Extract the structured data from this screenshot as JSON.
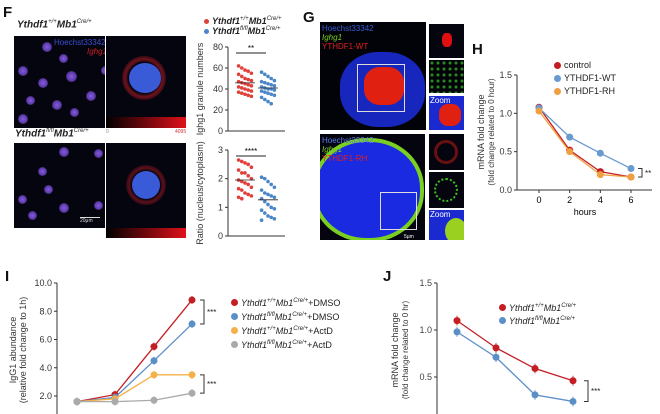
{
  "panels": {
    "F": {
      "label": "F",
      "row1_title": {
        "gene": "Ythdf1",
        "g_sup": "+/+",
        "cre": "Mb1",
        "c_sup": "Cre/+"
      },
      "row2_title": {
        "gene": "Ythdf1",
        "g_sup": "fl/fl",
        "cre": "Mb1",
        "c_sup": "Cre/+"
      },
      "channel_hoechst": "Hoechst33342",
      "channel_ighg1": "Ighg1",
      "colorbar_min": "0",
      "colorbar_max": "4095",
      "scale_bar": "20μm",
      "legend": [
        {
          "gene": "Ythdf1",
          "g_sup": "+/+",
          "cre": "Mb1",
          "c_sup": "Cre/+",
          "color": "#e0403a"
        },
        {
          "gene": "Ythdf1",
          "g_sup": "fl/fl",
          "cre": "Mb1",
          "c_sup": "Cre/+",
          "color": "#4a86c8"
        }
      ]
    },
    "G": {
      "label": "G",
      "top_channels": [
        "Hoechst33342",
        "Ighg1",
        "YTHDF1-WT"
      ],
      "bottom_channels": [
        "Hoechst33342",
        "Ighg1",
        "YTHDF1-RH"
      ],
      "zoom_label": "Zoom",
      "scale_bar": "5μm"
    },
    "H": {
      "label": "H"
    },
    "I": {
      "label": "I"
    },
    "J": {
      "label": "J"
    }
  },
  "chart_data": [
    {
      "id": "F-top",
      "type": "scatter",
      "ylabel": "Ighg1 granule numbers",
      "ylim": [
        0,
        80
      ],
      "yticks": [
        "0",
        "20",
        "40",
        "60",
        "80"
      ],
      "significance": "**",
      "series": [
        {
          "name": "Ythdf1+/+Mb1Cre/+",
          "color": "#e0403a",
          "values": [
            62,
            60,
            58,
            57,
            55,
            54,
            52,
            50,
            49,
            48,
            47,
            46,
            45,
            44,
            43,
            42,
            41,
            40,
            39,
            38,
            37,
            36,
            35,
            34,
            33
          ]
        },
        {
          "name": "Ythdf1fl/flMb1Cre/+",
          "color": "#4a86c8",
          "values": [
            56,
            54,
            52,
            50,
            48,
            47,
            46,
            45,
            44,
            43,
            42,
            41,
            40,
            40,
            39,
            38,
            37,
            36,
            35,
            34,
            32,
            30,
            28,
            26
          ]
        }
      ]
    },
    {
      "id": "F-bottom",
      "type": "scatter",
      "ylabel": "Ratio (nucleus/cytoplasm)",
      "ylim": [
        0,
        3
      ],
      "yticks": [
        "0",
        "1",
        "2",
        "3"
      ],
      "significance": "****",
      "series": [
        {
          "name": "Ythdf1+/+Mb1Cre/+",
          "color": "#e0403a",
          "values": [
            2.65,
            2.6,
            2.55,
            2.5,
            2.4,
            2.3,
            2.2,
            2.2,
            2.1,
            2.0,
            1.95,
            1.9,
            1.85,
            1.8,
            1.7,
            1.65,
            1.6,
            1.5,
            1.45,
            1.4,
            1.35,
            1.3
          ]
        },
        {
          "name": "Ythdf1fl/flMb1Cre/+",
          "color": "#4a86c8",
          "values": [
            2.05,
            2.0,
            1.9,
            1.8,
            1.7,
            1.6,
            1.5,
            1.45,
            1.4,
            1.35,
            1.3,
            1.2,
            1.1,
            1.0,
            0.95,
            0.9,
            0.8,
            0.7,
            0.65,
            0.6,
            0.55
          ]
        }
      ]
    },
    {
      "id": "H",
      "type": "line",
      "xlabel": "hours",
      "ylabel": "mRNA fold change",
      "ylabel2": "(fold change related to 0 hour)",
      "x": [
        0,
        2,
        4,
        6
      ],
      "xticks": [
        "0",
        "2",
        "4",
        "6"
      ],
      "ylim": [
        0,
        1.5
      ],
      "yticks": [
        "0.0",
        "0.5",
        "1.0",
        "1.5"
      ],
      "significance": "**",
      "series": [
        {
          "name": "control",
          "color": "#c41e24",
          "values": [
            1.08,
            0.52,
            0.24,
            0.17
          ]
        },
        {
          "name": "YTHDF1-WT",
          "color": "#6a9bd0",
          "values": [
            1.07,
            0.69,
            0.48,
            0.28
          ]
        },
        {
          "name": "YTHDF1-RH",
          "color": "#f0a040",
          "values": [
            1.03,
            0.5,
            0.2,
            0.17
          ]
        }
      ]
    },
    {
      "id": "I",
      "type": "line",
      "ylabel": "IgG1 abundance",
      "ylabel2": "(relative fold change to 1h)",
      "ylim": [
        2.0,
        10.0
      ],
      "yticks": [
        "2.0",
        "4.0",
        "6.0",
        "8.0",
        "10.0"
      ],
      "significance": [
        "***",
        "***"
      ],
      "series": [
        {
          "gene": "Ythdf1",
          "g_sup": "+/+",
          "cre": "Mb1",
          "c_sup": "Cre/+",
          "suffix": "+DMSO",
          "color": "#c41e24",
          "values": [
            1.6,
            2.1,
            5.5,
            8.8
          ]
        },
        {
          "gene": "Ythdf1",
          "g_sup": "fl/fl",
          "cre": "Mb1",
          "c_sup": "Cre/+",
          "suffix": "+DMSO",
          "color": "#5b8fc7",
          "values": [
            1.6,
            1.9,
            4.5,
            7.1
          ]
        },
        {
          "gene": "Ythdf1",
          "g_sup": "+/+",
          "cre": "Mb1",
          "c_sup": "Cre/+",
          "suffix": "+ActD",
          "color": "#f5b04a",
          "values": [
            1.6,
            1.8,
            3.5,
            3.5
          ]
        },
        {
          "gene": "Ythdf1",
          "g_sup": "fl/fl",
          "cre": "Mb1",
          "c_sup": "Cre/+",
          "suffix": "+ActD",
          "color": "#aaaaaa",
          "values": [
            1.6,
            1.6,
            1.7,
            2.2
          ]
        }
      ]
    },
    {
      "id": "J",
      "type": "line",
      "ylabel": "mRNA fold change",
      "ylabel2": "(fold change related to 0 hr)",
      "yticks": [
        "0.5",
        "1.0",
        "1.5"
      ],
      "significance": "***",
      "series": [
        {
          "gene": "Ythdf1",
          "g_sup": "+/+",
          "cre": "Mb1",
          "c_sup": "Cre/+",
          "color": "#c41e24",
          "values": [
            1.1,
            0.81,
            0.59,
            0.46
          ]
        },
        {
          "gene": "Ythdf1",
          "g_sup": "fl/fl",
          "cre": "Mb1",
          "c_sup": "Cre/+",
          "color": "#5b8fc7",
          "values": [
            0.98,
            0.71,
            0.31,
            0.24
          ]
        }
      ]
    }
  ]
}
